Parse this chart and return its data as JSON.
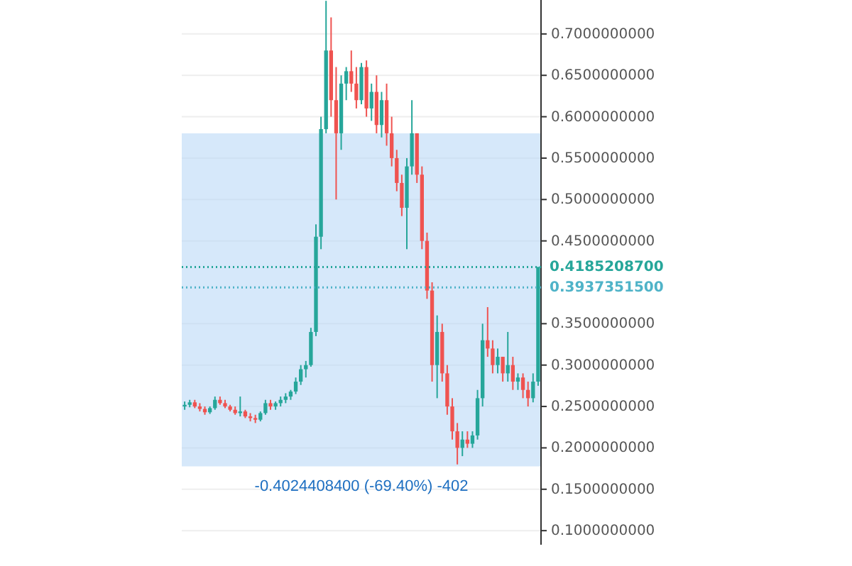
{
  "chart_data": {
    "type": "candlestick",
    "categories": [
      null,
      null,
      null,
      null,
      null,
      null,
      null,
      null,
      null,
      null,
      null,
      null,
      null,
      null,
      null,
      null,
      null,
      null,
      null,
      null,
      null,
      null,
      null,
      null,
      null,
      null,
      null,
      null,
      null,
      null,
      null,
      null,
      null,
      null,
      null,
      null,
      null,
      null,
      null,
      null,
      null,
      null,
      null,
      null,
      null,
      null,
      null,
      null,
      null,
      null,
      null,
      null,
      null,
      null,
      null,
      null,
      null,
      null,
      null,
      null,
      null,
      null,
      null,
      null,
      null,
      null,
      null,
      null,
      null,
      null,
      null
    ],
    "ohlc": [
      [
        0.25,
        0.256,
        0.246,
        0.252
      ],
      [
        0.252,
        0.258,
        0.249,
        0.255
      ],
      [
        0.255,
        0.258,
        0.248,
        0.25
      ],
      [
        0.25,
        0.254,
        0.244,
        0.247
      ],
      [
        0.247,
        0.25,
        0.24,
        0.243
      ],
      [
        0.243,
        0.25,
        0.241,
        0.248
      ],
      [
        0.248,
        0.262,
        0.246,
        0.258
      ],
      [
        0.258,
        0.262,
        0.252,
        0.254
      ],
      [
        0.254,
        0.258,
        0.248,
        0.25
      ],
      [
        0.25,
        0.252,
        0.244,
        0.246
      ],
      [
        0.246,
        0.25,
        0.24,
        0.242
      ],
      [
        0.242,
        0.262,
        0.238,
        0.244
      ],
      [
        0.244,
        0.246,
        0.236,
        0.238
      ],
      [
        0.238,
        0.242,
        0.232,
        0.236
      ],
      [
        0.236,
        0.24,
        0.23,
        0.234
      ],
      [
        0.234,
        0.244,
        0.232,
        0.242
      ],
      [
        0.242,
        0.258,
        0.24,
        0.254
      ],
      [
        0.254,
        0.258,
        0.246,
        0.25
      ],
      [
        0.25,
        0.256,
        0.246,
        0.254
      ],
      [
        0.254,
        0.262,
        0.25,
        0.258
      ],
      [
        0.258,
        0.266,
        0.254,
        0.262
      ],
      [
        0.262,
        0.27,
        0.258,
        0.268
      ],
      [
        0.268,
        0.285,
        0.265,
        0.28
      ],
      [
        0.28,
        0.3,
        0.276,
        0.295
      ],
      [
        0.295,
        0.305,
        0.285,
        0.3
      ],
      [
        0.3,
        0.345,
        0.298,
        0.34
      ],
      [
        0.34,
        0.47,
        0.335,
        0.455
      ],
      [
        0.455,
        0.6,
        0.44,
        0.585
      ],
      [
        0.585,
        0.74,
        0.58,
        0.68
      ],
      [
        0.68,
        0.72,
        0.6,
        0.62
      ],
      [
        0.62,
        0.66,
        0.5,
        0.58
      ],
      [
        0.58,
        0.65,
        0.56,
        0.64
      ],
      [
        0.64,
        0.66,
        0.62,
        0.655
      ],
      [
        0.655,
        0.68,
        0.63,
        0.64
      ],
      [
        0.64,
        0.66,
        0.61,
        0.62
      ],
      [
        0.62,
        0.665,
        0.615,
        0.66
      ],
      [
        0.66,
        0.668,
        0.6,
        0.61
      ],
      [
        0.61,
        0.64,
        0.595,
        0.63
      ],
      [
        0.63,
        0.65,
        0.58,
        0.59
      ],
      [
        0.59,
        0.63,
        0.575,
        0.62
      ],
      [
        0.62,
        0.64,
        0.565,
        0.58
      ],
      [
        0.58,
        0.6,
        0.54,
        0.55
      ],
      [
        0.55,
        0.56,
        0.51,
        0.52
      ],
      [
        0.52,
        0.53,
        0.48,
        0.49
      ],
      [
        0.49,
        0.55,
        0.44,
        0.54
      ],
      [
        0.54,
        0.62,
        0.53,
        0.58
      ],
      [
        0.58,
        0.58,
        0.52,
        0.53
      ],
      [
        0.53,
        0.54,
        0.44,
        0.45
      ],
      [
        0.45,
        0.46,
        0.38,
        0.39
      ],
      [
        0.39,
        0.4,
        0.28,
        0.3
      ],
      [
        0.3,
        0.36,
        0.26,
        0.34
      ],
      [
        0.34,
        0.35,
        0.28,
        0.29
      ],
      [
        0.29,
        0.3,
        0.24,
        0.25
      ],
      [
        0.25,
        0.26,
        0.21,
        0.22
      ],
      [
        0.22,
        0.23,
        0.18,
        0.2
      ],
      [
        0.2,
        0.22,
        0.19,
        0.21
      ],
      [
        0.21,
        0.22,
        0.2,
        0.205
      ],
      [
        0.205,
        0.22,
        0.2,
        0.215
      ],
      [
        0.215,
        0.27,
        0.21,
        0.26
      ],
      [
        0.26,
        0.35,
        0.25,
        0.33
      ],
      [
        0.33,
        0.37,
        0.31,
        0.32
      ],
      [
        0.32,
        0.33,
        0.29,
        0.3
      ],
      [
        0.3,
        0.32,
        0.29,
        0.31
      ],
      [
        0.31,
        0.31,
        0.28,
        0.29
      ],
      [
        0.29,
        0.34,
        0.28,
        0.3
      ],
      [
        0.3,
        0.31,
        0.27,
        0.28
      ],
      [
        0.28,
        0.29,
        0.27,
        0.285
      ],
      [
        0.285,
        0.29,
        0.26,
        0.27
      ],
      [
        0.27,
        0.28,
        0.25,
        0.26
      ],
      [
        0.26,
        0.29,
        0.255,
        0.28
      ],
      [
        0.28,
        0.41852087,
        0.275,
        0.41852087
      ]
    ],
    "colors": [
      "#26a69a",
      "#26a69a",
      "#ef5350",
      "#ef5350",
      "#ef5350",
      "#26a69a",
      "#26a69a",
      "#ef5350",
      "#ef5350",
      "#ef5350",
      "#ef5350",
      "#26a69a",
      "#ef5350",
      "#ef5350",
      "#ef5350",
      "#26a69a",
      "#26a69a",
      "#ef5350",
      "#26a69a",
      "#26a69a",
      "#26a69a",
      "#26a69a",
      "#26a69a",
      "#26a69a",
      "#26a69a",
      "#26a69a",
      "#26a69a",
      "#26a69a",
      "#26a69a",
      "#ef5350",
      "#ef5350",
      "#26a69a",
      "#26a69a",
      "#ef5350",
      "#ef5350",
      "#26a69a",
      "#ef5350",
      "#26a69a",
      "#ef5350",
      "#26a69a",
      "#ef5350",
      "#ef5350",
      "#ef5350",
      "#ef5350",
      "#26a69a",
      "#26a69a",
      "#ef5350",
      "#ef5350",
      "#ef5350",
      "#ef5350",
      "#26a69a",
      "#ef5350",
      "#ef5350",
      "#ef5350",
      "#ef5350",
      "#26a69a",
      "#ef5350",
      "#26a69a",
      "#26a69a",
      "#26a69a",
      "#ef5350",
      "#ef5350",
      "#26a69a",
      "#ef5350",
      "#26a69a",
      "#ef5350",
      "#26a69a",
      "#ef5350",
      "#ef5350",
      "#26a69a",
      "#26a69a"
    ],
    "ylim": [
      0.083,
      0.741
    ],
    "yticks": [
      {
        "value": 0.1,
        "label": "0.1000000000"
      },
      {
        "value": 0.15,
        "label": "0.1500000000"
      },
      {
        "value": 0.2,
        "label": "0.2000000000"
      },
      {
        "value": 0.25,
        "label": "0.2500000000"
      },
      {
        "value": 0.3,
        "label": "0.3000000000"
      },
      {
        "value": 0.35,
        "label": "0.3500000000"
      },
      {
        "value": 0.45,
        "label": "0.4500000000"
      },
      {
        "value": 0.5,
        "label": "0.5000000000"
      },
      {
        "value": 0.55,
        "label": "0.5500000000"
      },
      {
        "value": 0.6,
        "label": "0.6000000000"
      },
      {
        "value": 0.65,
        "label": "0.6500000000"
      },
      {
        "value": 0.7,
        "label": "0.7000000000"
      }
    ],
    "grid": "y",
    "ref_lines": [
      {
        "axis": "y",
        "value": 0.41852087,
        "label": "0.4185208700",
        "color": "#26a69a",
        "line_style": "dotted"
      },
      {
        "axis": "y",
        "value": 0.39373515,
        "label": "0.3937351500",
        "color": "#4fb3c8",
        "line_style": "dotted"
      }
    ],
    "bands": [
      {
        "axis": "y",
        "from": 0.1776,
        "to": 0.58,
        "label": "-0.4024408400 (-69.40%) -402",
        "color": "#bbd8f7"
      }
    ]
  }
}
